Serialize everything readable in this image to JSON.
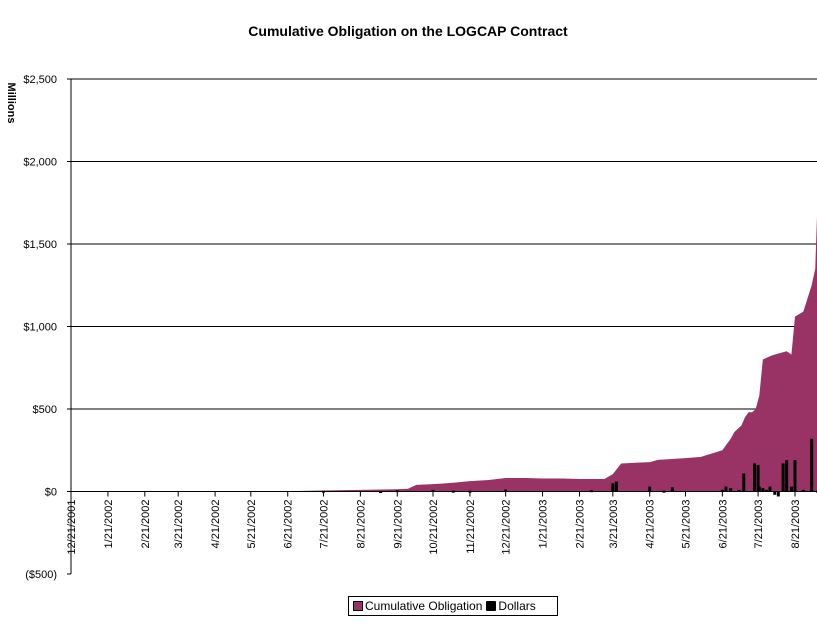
{
  "chart_data": {
    "type": "area",
    "title": "Cumulative Obligation on the LOGCAP Contract",
    "ylabel": "Millions",
    "ylim": [
      -500,
      2500
    ],
    "yticks": [
      {
        "value": 2500,
        "label": "$2,500"
      },
      {
        "value": 2000,
        "label": "$2,000"
      },
      {
        "value": 1500,
        "label": "$1,500"
      },
      {
        "value": 1000,
        "label": "$1,000"
      },
      {
        "value": 500,
        "label": "$500"
      },
      {
        "value": 0,
        "label": "$0"
      },
      {
        "value": -500,
        "label": "($500)"
      }
    ],
    "xticks": [
      "12/21/2001",
      "1/21/2002",
      "2/21/2002",
      "3/21/2002",
      "4/21/2002",
      "5/21/2002",
      "6/21/2002",
      "7/21/2002",
      "8/21/2002",
      "9/21/2002",
      "10/21/2002",
      "11/21/2002",
      "12/21/2002",
      "1/21/2003",
      "2/21/2003",
      "3/21/2003",
      "4/21/2003",
      "5/21/2003",
      "6/21/2003",
      "7/21/2003",
      "8/21/2003"
    ],
    "grid": true,
    "legend_placement": "bottom",
    "series": [
      {
        "name": "Cumulative Obligation",
        "color": "#993366",
        "x": [
          "12/21/2001",
          "6/21/2002",
          "6/28/2002",
          "7/21/2002",
          "8/7/2002",
          "8/21/2002",
          "9/21/2002",
          "9/30/2002",
          "10/7/2002",
          "10/21/2002",
          "10/28/2002",
          "11/7/2002",
          "11/21/2002",
          "12/7/2002",
          "12/21/2002",
          "1/7/2003",
          "1/21/2003",
          "2/7/2003",
          "2/21/2003",
          "3/14/2003",
          "3/21/2003",
          "3/28/2003",
          "4/21/2003",
          "4/28/2003",
          "5/21/2003",
          "6/3/2003",
          "6/21/2003",
          "6/24/2003",
          "6/28/2003",
          "7/1/2003",
          "7/7/2003",
          "7/10/2003",
          "7/13/2003",
          "7/16/2003",
          "7/19/2003",
          "7/22/2003",
          "7/25/2003",
          "7/31/2003",
          "8/4/2003",
          "8/9/2003",
          "8/14/2003",
          "8/18/2003",
          "8/21/2003",
          "8/28/2003",
          "9/4/2003",
          "9/7/2003",
          "9/20/2003"
        ],
        "values": [
          0,
          0,
          3,
          6,
          8,
          10,
          14,
          17,
          40,
          45,
          48,
          53,
          63,
          70,
          82,
          82,
          79,
          79,
          76,
          76,
          105,
          170,
          178,
          192,
          202,
          210,
          250,
          280,
          320,
          360,
          400,
          450,
          480,
          480,
          500,
          580,
          800,
          820,
          830,
          840,
          850,
          830,
          1060,
          1090,
          1250,
          1350,
          1670
        ]
      },
      {
        "name": "Dollars",
        "color": "#000000",
        "x": [
          "7/21/2002",
          "9/7/2002",
          "9/21/2002",
          "10/21/2002",
          "11/7/2002",
          "11/21/2002",
          "12/21/2002",
          "3/3/2003",
          "3/21/2003",
          "3/24/2003",
          "4/21/2003",
          "5/3/2003",
          "5/10/2003",
          "6/21/2003",
          "6/24/2003",
          "6/28/2003",
          "7/5/2003",
          "7/9/2003",
          "7/18/2003",
          "7/21/2003",
          "7/22/2003",
          "7/25/2003",
          "7/28/2003",
          "7/31/2003",
          "8/4/2003",
          "8/7/2003",
          "8/11/2003",
          "8/14/2003",
          "8/18/2003",
          "8/21/2003",
          "8/28/2003",
          "9/4/2003",
          "9/9/2003"
        ],
        "values": [
          5,
          3,
          8,
          10,
          5,
          5,
          12,
          8,
          50,
          60,
          30,
          5,
          25,
          10,
          30,
          20,
          10,
          110,
          170,
          160,
          30,
          20,
          10,
          30,
          -20,
          -30,
          170,
          190,
          30,
          190,
          10,
          320,
          5
        ]
      }
    ]
  }
}
